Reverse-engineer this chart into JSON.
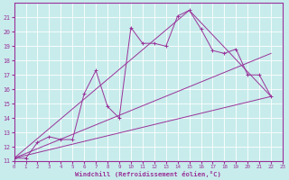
{
  "xlabel": "Windchill (Refroidissement éolien,°C)",
  "bg_color": "#c8ecec",
  "line_color": "#993399",
  "grid_color": "#ffffff",
  "xmin": 0,
  "xmax": 23,
  "ymin": 11,
  "ymax": 22,
  "line1_x": [
    0,
    1,
    2,
    3,
    4,
    5,
    6,
    7,
    8,
    9,
    10,
    11,
    12,
    13,
    14,
    15,
    16,
    17,
    18,
    19,
    20,
    21,
    22
  ],
  "line1_y": [
    11.2,
    11.2,
    12.3,
    12.7,
    12.5,
    12.5,
    15.7,
    17.3,
    14.8,
    14.0,
    20.3,
    19.2,
    19.2,
    19.0,
    21.1,
    21.5,
    20.2,
    18.7,
    18.5,
    18.8,
    17.0,
    17.0,
    15.5
  ],
  "line3_x": [
    0,
    15,
    22
  ],
  "line3_y": [
    11.2,
    21.5,
    15.5
  ],
  "line4_x": [
    0,
    22
  ],
  "line4_y": [
    11.2,
    15.5
  ],
  "line5_x": [
    0,
    22
  ],
  "line5_y": [
    11.2,
    18.5
  ],
  "yticks": [
    11,
    12,
    13,
    14,
    15,
    16,
    17,
    18,
    19,
    20,
    21
  ],
  "xticks": [
    0,
    1,
    2,
    3,
    4,
    5,
    6,
    7,
    8,
    9,
    10,
    11,
    12,
    13,
    14,
    15,
    16,
    17,
    18,
    19,
    20,
    21,
    22,
    23
  ]
}
